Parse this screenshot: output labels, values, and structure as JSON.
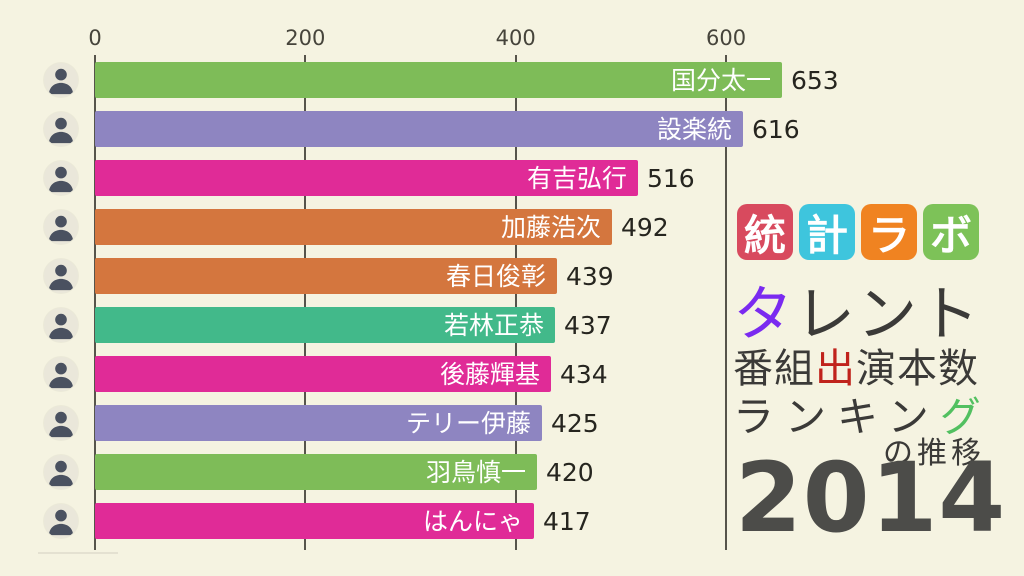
{
  "background_color": "#f5f3e1",
  "chart_data": {
    "type": "bar",
    "orientation": "horizontal",
    "title": "タレント番組出演本数ランキングの推移",
    "year": "2014",
    "categories": [
      "国分太一",
      "設楽統",
      "有吉弘行",
      "加藤浩次",
      "春日俊彰",
      "若林正恭",
      "後藤輝基",
      "テリー伊藤",
      "羽鳥慎一",
      "はんにゃ"
    ],
    "values": [
      653,
      616,
      516,
      492,
      439,
      437,
      434,
      425,
      420,
      417
    ],
    "bar_colors": [
      "#7ebc58",
      "#8e85c1",
      "#e02b97",
      "#d4763e",
      "#d4763e",
      "#42b98a",
      "#e02b97",
      "#8e85c1",
      "#7ebc58",
      "#e02b97"
    ],
    "xticks": [
      0,
      200,
      400,
      600
    ],
    "xlim": [
      0,
      653
    ],
    "grid": true,
    "axis_position": "top",
    "label_position": "inside-end",
    "value_position": "outside-end"
  },
  "axis": {
    "tick_labels": [
      "0",
      "200",
      "400",
      "600"
    ],
    "tick_color": "#46443b",
    "gridline_color": "#56544b"
  },
  "title": {
    "logo_chars": [
      {
        "ch": "統",
        "bg": "#d84a5e"
      },
      {
        "ch": "計",
        "bg": "#3ec5dd"
      },
      {
        "ch": "ラ",
        "bg": "#f08321"
      },
      {
        "ch": "ボ",
        "bg": "#7dc258"
      }
    ],
    "line_talent": {
      "head": "タ",
      "head_color": "#7a2af0",
      "tail": "レント"
    },
    "line_count": {
      "head": "番組",
      "accent": "出",
      "accent_color": "#c0231c",
      "tail": "演本数"
    },
    "line_ranking": {
      "head": "ランキン",
      "accent": "グ",
      "accent_color": "#52c060"
    },
    "line_suffix": "の推移",
    "year": "2014",
    "year_color": "#4c4c49",
    "text_color": "#3b3a38"
  }
}
